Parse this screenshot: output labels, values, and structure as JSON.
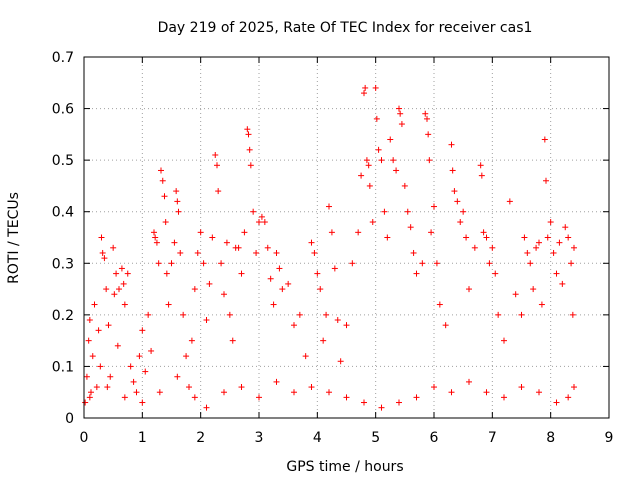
{
  "chart_data": {
    "type": "scatter",
    "title": "Day 219 of 2025, Rate Of TEC Index for receiver cas1",
    "xlabel": "GPS time / hours",
    "ylabel": "ROTI / TECUs",
    "xlim": [
      0,
      9
    ],
    "ylim": [
      0,
      0.7
    ],
    "xticks": [
      "0",
      "1",
      "2",
      "3",
      "4",
      "5",
      "6",
      "7",
      "8",
      "9"
    ],
    "yticks": [
      "0",
      "0.1",
      "0.2",
      "0.3",
      "0.4",
      "0.5",
      "0.6",
      "0.7"
    ],
    "grid": true,
    "marker": "+",
    "color": "#ff0000",
    "x_range_of_data": [
      0.0,
      8.4
    ],
    "series": [
      {
        "points": [
          [
            0.02,
            0.03
          ],
          [
            0.05,
            0.08
          ],
          [
            0.08,
            0.15
          ],
          [
            0.1,
            0.19
          ],
          [
            0.12,
            0.05
          ],
          [
            0.15,
            0.12
          ],
          [
            0.18,
            0.22
          ],
          [
            0.22,
            0.06
          ],
          [
            0.25,
            0.17
          ],
          [
            0.28,
            0.1
          ],
          [
            0.3,
            0.35
          ],
          [
            0.32,
            0.32
          ],
          [
            0.35,
            0.31
          ],
          [
            0.38,
            0.25
          ],
          [
            0.42,
            0.18
          ],
          [
            0.45,
            0.08
          ],
          [
            0.5,
            0.33
          ],
          [
            0.52,
            0.24
          ],
          [
            0.55,
            0.28
          ],
          [
            0.58,
            0.14
          ],
          [
            0.6,
            0.25
          ],
          [
            0.65,
            0.29
          ],
          [
            0.68,
            0.26
          ],
          [
            0.7,
            0.22
          ],
          [
            0.75,
            0.28
          ],
          [
            0.8,
            0.1
          ],
          [
            0.85,
            0.07
          ],
          [
            0.9,
            0.05
          ],
          [
            0.95,
            0.12
          ],
          [
            1.0,
            0.17
          ],
          [
            1.05,
            0.09
          ],
          [
            1.1,
            0.2
          ],
          [
            1.15,
            0.13
          ],
          [
            1.2,
            0.36
          ],
          [
            1.22,
            0.35
          ],
          [
            1.25,
            0.34
          ],
          [
            1.28,
            0.3
          ],
          [
            1.32,
            0.48
          ],
          [
            1.35,
            0.46
          ],
          [
            1.38,
            0.43
          ],
          [
            1.4,
            0.38
          ],
          [
            1.42,
            0.28
          ],
          [
            1.45,
            0.22
          ],
          [
            1.5,
            0.3
          ],
          [
            1.55,
            0.34
          ],
          [
            1.58,
            0.44
          ],
          [
            1.6,
            0.42
          ],
          [
            1.62,
            0.4
          ],
          [
            1.65,
            0.32
          ],
          [
            1.7,
            0.2
          ],
          [
            1.75,
            0.12
          ],
          [
            1.8,
            0.06
          ],
          [
            1.85,
            0.15
          ],
          [
            1.9,
            0.25
          ],
          [
            1.95,
            0.32
          ],
          [
            2.0,
            0.36
          ],
          [
            2.05,
            0.3
          ],
          [
            2.1,
            0.19
          ],
          [
            2.15,
            0.26
          ],
          [
            2.2,
            0.35
          ],
          [
            2.25,
            0.51
          ],
          [
            2.28,
            0.49
          ],
          [
            2.3,
            0.44
          ],
          [
            2.35,
            0.3
          ],
          [
            2.4,
            0.24
          ],
          [
            2.45,
            0.34
          ],
          [
            2.5,
            0.2
          ],
          [
            2.55,
            0.15
          ],
          [
            2.6,
            0.33
          ],
          [
            2.65,
            0.33
          ],
          [
            2.7,
            0.28
          ],
          [
            2.75,
            0.36
          ],
          [
            2.8,
            0.56
          ],
          [
            2.82,
            0.55
          ],
          [
            2.84,
            0.52
          ],
          [
            2.86,
            0.49
          ],
          [
            2.9,
            0.4
          ],
          [
            2.95,
            0.32
          ],
          [
            3.0,
            0.38
          ],
          [
            3.05,
            0.39
          ],
          [
            3.1,
            0.38
          ],
          [
            3.15,
            0.33
          ],
          [
            3.2,
            0.27
          ],
          [
            3.25,
            0.22
          ],
          [
            3.3,
            0.32
          ],
          [
            3.35,
            0.29
          ],
          [
            3.4,
            0.25
          ],
          [
            3.5,
            0.26
          ],
          [
            3.6,
            0.18
          ],
          [
            3.7,
            0.2
          ],
          [
            3.8,
            0.12
          ],
          [
            3.9,
            0.34
          ],
          [
            3.95,
            0.32
          ],
          [
            4.0,
            0.28
          ],
          [
            4.05,
            0.25
          ],
          [
            4.1,
            0.15
          ],
          [
            4.15,
            0.2
          ],
          [
            4.2,
            0.41
          ],
          [
            4.25,
            0.36
          ],
          [
            4.3,
            0.29
          ],
          [
            4.35,
            0.19
          ],
          [
            4.4,
            0.11
          ],
          [
            4.5,
            0.18
          ],
          [
            4.6,
            0.3
          ],
          [
            4.7,
            0.36
          ],
          [
            4.75,
            0.47
          ],
          [
            4.8,
            0.63
          ],
          [
            4.82,
            0.64
          ],
          [
            4.85,
            0.5
          ],
          [
            4.88,
            0.49
          ],
          [
            4.9,
            0.45
          ],
          [
            4.95,
            0.38
          ],
          [
            5.0,
            0.64
          ],
          [
            5.02,
            0.58
          ],
          [
            5.05,
            0.52
          ],
          [
            5.1,
            0.5
          ],
          [
            5.15,
            0.4
          ],
          [
            5.2,
            0.35
          ],
          [
            5.25,
            0.54
          ],
          [
            5.3,
            0.5
          ],
          [
            5.35,
            0.48
          ],
          [
            5.4,
            0.6
          ],
          [
            5.42,
            0.59
          ],
          [
            5.45,
            0.57
          ],
          [
            5.5,
            0.45
          ],
          [
            5.55,
            0.4
          ],
          [
            5.6,
            0.37
          ],
          [
            5.65,
            0.32
          ],
          [
            5.7,
            0.28
          ],
          [
            5.8,
            0.3
          ],
          [
            5.85,
            0.59
          ],
          [
            5.88,
            0.58
          ],
          [
            5.9,
            0.55
          ],
          [
            5.92,
            0.5
          ],
          [
            5.95,
            0.36
          ],
          [
            6.0,
            0.41
          ],
          [
            6.05,
            0.3
          ],
          [
            6.1,
            0.22
          ],
          [
            6.2,
            0.18
          ],
          [
            6.3,
            0.53
          ],
          [
            6.32,
            0.48
          ],
          [
            6.35,
            0.44
          ],
          [
            6.4,
            0.42
          ],
          [
            6.45,
            0.38
          ],
          [
            6.5,
            0.4
          ],
          [
            6.55,
            0.35
          ],
          [
            6.6,
            0.25
          ],
          [
            6.7,
            0.33
          ],
          [
            6.8,
            0.49
          ],
          [
            6.82,
            0.47
          ],
          [
            6.85,
            0.36
          ],
          [
            6.9,
            0.35
          ],
          [
            6.95,
            0.3
          ],
          [
            7.0,
            0.33
          ],
          [
            7.05,
            0.28
          ],
          [
            7.1,
            0.2
          ],
          [
            7.2,
            0.15
          ],
          [
            7.3,
            0.42
          ],
          [
            7.4,
            0.24
          ],
          [
            7.5,
            0.2
          ],
          [
            7.55,
            0.35
          ],
          [
            7.6,
            0.32
          ],
          [
            7.65,
            0.3
          ],
          [
            7.7,
            0.25
          ],
          [
            7.75,
            0.33
          ],
          [
            7.8,
            0.34
          ],
          [
            7.85,
            0.22
          ],
          [
            7.9,
            0.54
          ],
          [
            7.92,
            0.46
          ],
          [
            7.95,
            0.35
          ],
          [
            8.0,
            0.38
          ],
          [
            8.05,
            0.32
          ],
          [
            8.1,
            0.28
          ],
          [
            8.15,
            0.34
          ],
          [
            8.2,
            0.26
          ],
          [
            8.25,
            0.37
          ],
          [
            8.3,
            0.35
          ],
          [
            8.35,
            0.3
          ],
          [
            8.38,
            0.2
          ],
          [
            8.4,
            0.33
          ],
          [
            0.1,
            0.04
          ],
          [
            0.4,
            0.06
          ],
          [
            0.7,
            0.04
          ],
          [
            1.0,
            0.03
          ],
          [
            1.3,
            0.05
          ],
          [
            1.6,
            0.08
          ],
          [
            1.9,
            0.04
          ],
          [
            2.1,
            0.02
          ],
          [
            2.4,
            0.05
          ],
          [
            2.7,
            0.06
          ],
          [
            3.0,
            0.04
          ],
          [
            3.3,
            0.07
          ],
          [
            3.6,
            0.05
          ],
          [
            3.9,
            0.06
          ],
          [
            4.2,
            0.05
          ],
          [
            4.5,
            0.04
          ],
          [
            4.8,
            0.03
          ],
          [
            5.1,
            0.02
          ],
          [
            5.4,
            0.03
          ],
          [
            5.7,
            0.04
          ],
          [
            6.0,
            0.06
          ],
          [
            6.3,
            0.05
          ],
          [
            6.6,
            0.07
          ],
          [
            6.9,
            0.05
          ],
          [
            7.2,
            0.04
          ],
          [
            7.5,
            0.06
          ],
          [
            7.8,
            0.05
          ],
          [
            8.1,
            0.03
          ],
          [
            8.3,
            0.04
          ],
          [
            8.4,
            0.06
          ]
        ]
      }
    ]
  }
}
